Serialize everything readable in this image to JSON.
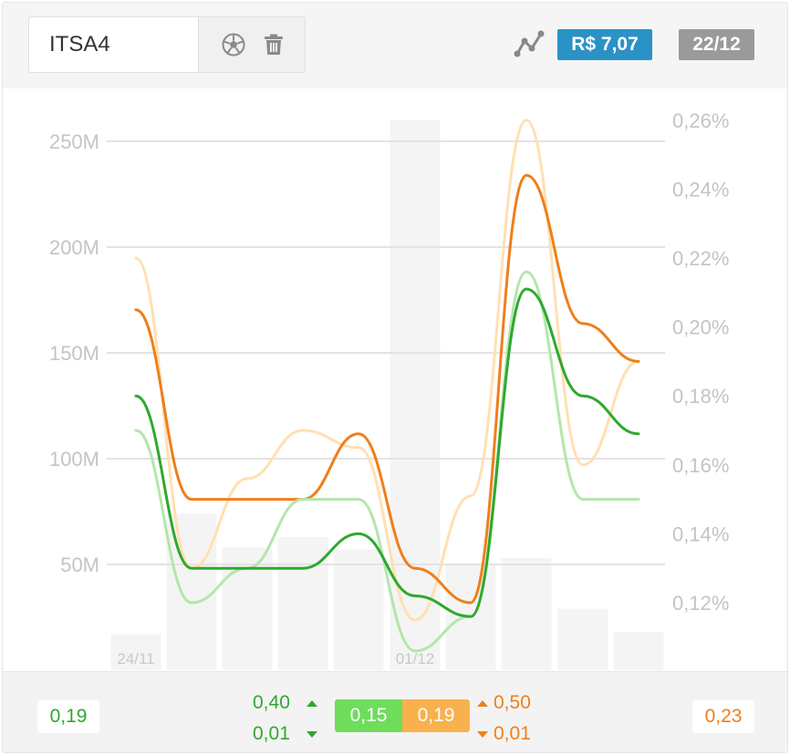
{
  "header": {
    "ticker_value": "ITSA4",
    "soccer_icon": "soccer-ball-icon",
    "trash_icon": "trash-icon",
    "chart_icon": "line-chart-icon",
    "price": "R$ 7,07",
    "date": "22/12",
    "price_color": "#2b92c6",
    "date_color": "#9a9a9a"
  },
  "chart_data": {
    "type": "line",
    "title": "",
    "x_tick_labels": [
      {
        "label": "24/11",
        "index": 0
      },
      {
        "label": "01/12",
        "index": 5
      }
    ],
    "bars": {
      "name": "",
      "axis": "left",
      "values": [
        17,
        74,
        58,
        63,
        57,
        260,
        50,
        53,
        29,
        18
      ]
    },
    "y_left": {
      "ticks": [
        50,
        100,
        150,
        200,
        250
      ],
      "tick_labels": [
        "50M",
        "100M",
        "150M",
        "200M",
        "250M"
      ],
      "range": [
        0,
        270
      ]
    },
    "y_right": {
      "ticks": [
        0.12,
        0.14,
        0.16,
        0.18,
        0.2,
        0.22,
        0.24,
        0.26
      ],
      "tick_labels": [
        "0,12%",
        "0,14%",
        "0,16%",
        "0,18%",
        "0,20%",
        "0,22%",
        "0,24%",
        "0,26%"
      ],
      "range": [
        0.105,
        0.26
      ]
    },
    "series": [
      {
        "color": "#ffe0b3",
        "values": [
          0.22,
          0.13,
          0.156,
          0.17,
          0.165,
          0.115,
          0.151,
          0.26,
          0.16,
          0.19
        ]
      },
      {
        "color": "#ef7f1a",
        "values": [
          0.205,
          0.15,
          0.15,
          0.15,
          0.169,
          0.13,
          0.12,
          0.244,
          0.201,
          0.19
        ]
      },
      {
        "color": "#b4e6ab",
        "values": [
          0.17,
          0.12,
          0.13,
          0.15,
          0.15,
          0.106,
          0.116,
          0.216,
          0.15,
          0.15
        ]
      },
      {
        "color": "#2fa82f",
        "values": [
          0.18,
          0.13,
          0.13,
          0.13,
          0.14,
          0.122,
          0.116,
          0.211,
          0.18,
          0.169
        ]
      }
    ]
  },
  "footer": {
    "left_value": "0,19",
    "green_high": "0,40",
    "green_low": "0,01",
    "green_mid": "0,15",
    "orange_mid": "0,19",
    "orange_high": "0,50",
    "orange_low": "0,01",
    "right_value": "0,23"
  }
}
